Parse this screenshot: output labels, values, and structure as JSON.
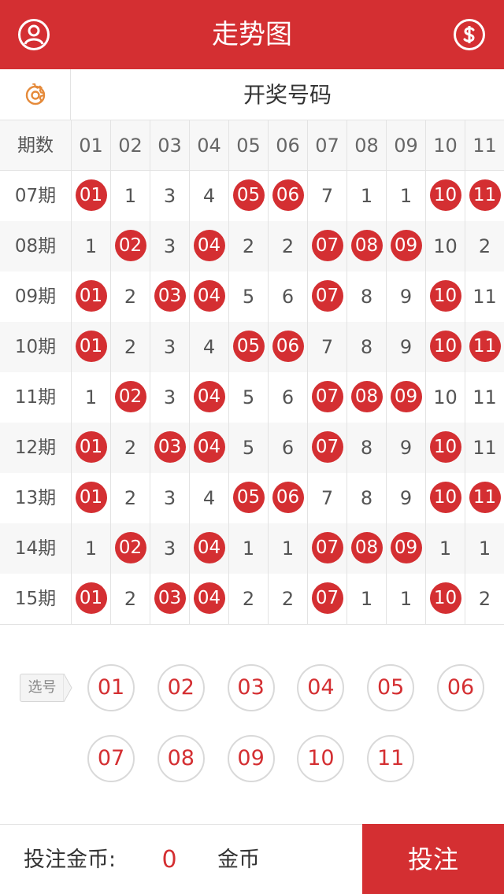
{
  "header": {
    "title": "走势图",
    "left_icon": "user-icon",
    "right_icon": "dollar-icon"
  },
  "subheader": {
    "settings_icon": "gear-icon",
    "label": "开奖号码"
  },
  "colors": {
    "accent": "#d42f32",
    "grid_line": "#e3e3e3",
    "alt_row": "#f7f7f7"
  },
  "table": {
    "period_header": "期数",
    "columns": [
      "01",
      "02",
      "03",
      "04",
      "05",
      "06",
      "07",
      "08",
      "09",
      "10",
      "11"
    ],
    "rows": [
      {
        "period": "07期",
        "cells": [
          {
            "v": "01",
            "hit": true
          },
          {
            "v": "1",
            "hit": false
          },
          {
            "v": "3",
            "hit": false
          },
          {
            "v": "4",
            "hit": false
          },
          {
            "v": "05",
            "hit": true
          },
          {
            "v": "06",
            "hit": true
          },
          {
            "v": "7",
            "hit": false
          },
          {
            "v": "1",
            "hit": false
          },
          {
            "v": "1",
            "hit": false
          },
          {
            "v": "10",
            "hit": true
          },
          {
            "v": "11",
            "hit": true
          }
        ]
      },
      {
        "period": "08期",
        "cells": [
          {
            "v": "1",
            "hit": false
          },
          {
            "v": "02",
            "hit": true
          },
          {
            "v": "3",
            "hit": false
          },
          {
            "v": "04",
            "hit": true
          },
          {
            "v": "2",
            "hit": false
          },
          {
            "v": "2",
            "hit": false
          },
          {
            "v": "07",
            "hit": true
          },
          {
            "v": "08",
            "hit": true
          },
          {
            "v": "09",
            "hit": true
          },
          {
            "v": "10",
            "hit": false
          },
          {
            "v": "2",
            "hit": false
          }
        ]
      },
      {
        "period": "09期",
        "cells": [
          {
            "v": "01",
            "hit": true
          },
          {
            "v": "2",
            "hit": false
          },
          {
            "v": "03",
            "hit": true
          },
          {
            "v": "04",
            "hit": true
          },
          {
            "v": "5",
            "hit": false
          },
          {
            "v": "6",
            "hit": false
          },
          {
            "v": "07",
            "hit": true
          },
          {
            "v": "8",
            "hit": false
          },
          {
            "v": "9",
            "hit": false
          },
          {
            "v": "10",
            "hit": true
          },
          {
            "v": "11",
            "hit": false
          }
        ]
      },
      {
        "period": "10期",
        "cells": [
          {
            "v": "01",
            "hit": true
          },
          {
            "v": "2",
            "hit": false
          },
          {
            "v": "3",
            "hit": false
          },
          {
            "v": "4",
            "hit": false
          },
          {
            "v": "05",
            "hit": true
          },
          {
            "v": "06",
            "hit": true
          },
          {
            "v": "7",
            "hit": false
          },
          {
            "v": "8",
            "hit": false
          },
          {
            "v": "9",
            "hit": false
          },
          {
            "v": "10",
            "hit": true
          },
          {
            "v": "11",
            "hit": true
          }
        ]
      },
      {
        "period": "11期",
        "cells": [
          {
            "v": "1",
            "hit": false
          },
          {
            "v": "02",
            "hit": true
          },
          {
            "v": "3",
            "hit": false
          },
          {
            "v": "04",
            "hit": true
          },
          {
            "v": "5",
            "hit": false
          },
          {
            "v": "6",
            "hit": false
          },
          {
            "v": "07",
            "hit": true
          },
          {
            "v": "08",
            "hit": true
          },
          {
            "v": "09",
            "hit": true
          },
          {
            "v": "10",
            "hit": false
          },
          {
            "v": "11",
            "hit": false
          }
        ]
      },
      {
        "period": "12期",
        "cells": [
          {
            "v": "01",
            "hit": true
          },
          {
            "v": "2",
            "hit": false
          },
          {
            "v": "03",
            "hit": true
          },
          {
            "v": "04",
            "hit": true
          },
          {
            "v": "5",
            "hit": false
          },
          {
            "v": "6",
            "hit": false
          },
          {
            "v": "07",
            "hit": true
          },
          {
            "v": "8",
            "hit": false
          },
          {
            "v": "9",
            "hit": false
          },
          {
            "v": "10",
            "hit": true
          },
          {
            "v": "11",
            "hit": false
          }
        ]
      },
      {
        "period": "13期",
        "cells": [
          {
            "v": "01",
            "hit": true
          },
          {
            "v": "2",
            "hit": false
          },
          {
            "v": "3",
            "hit": false
          },
          {
            "v": "4",
            "hit": false
          },
          {
            "v": "05",
            "hit": true
          },
          {
            "v": "06",
            "hit": true
          },
          {
            "v": "7",
            "hit": false
          },
          {
            "v": "8",
            "hit": false
          },
          {
            "v": "9",
            "hit": false
          },
          {
            "v": "10",
            "hit": true
          },
          {
            "v": "11",
            "hit": true
          }
        ]
      },
      {
        "period": "14期",
        "cells": [
          {
            "v": "1",
            "hit": false
          },
          {
            "v": "02",
            "hit": true
          },
          {
            "v": "3",
            "hit": false
          },
          {
            "v": "04",
            "hit": true
          },
          {
            "v": "1",
            "hit": false
          },
          {
            "v": "1",
            "hit": false
          },
          {
            "v": "07",
            "hit": true
          },
          {
            "v": "08",
            "hit": true
          },
          {
            "v": "09",
            "hit": true
          },
          {
            "v": "1",
            "hit": false
          },
          {
            "v": "1",
            "hit": false
          }
        ]
      },
      {
        "period": "15期",
        "cells": [
          {
            "v": "01",
            "hit": true
          },
          {
            "v": "2",
            "hit": false
          },
          {
            "v": "03",
            "hit": true
          },
          {
            "v": "04",
            "hit": true
          },
          {
            "v": "2",
            "hit": false
          },
          {
            "v": "2",
            "hit": false
          },
          {
            "v": "07",
            "hit": true
          },
          {
            "v": "1",
            "hit": false
          },
          {
            "v": "1",
            "hit": false
          },
          {
            "v": "10",
            "hit": true
          },
          {
            "v": "2",
            "hit": false
          }
        ]
      }
    ]
  },
  "picker": {
    "tag_label": "选号",
    "numbers": [
      "01",
      "02",
      "03",
      "04",
      "05",
      "06",
      "07",
      "08",
      "09",
      "10",
      "11"
    ]
  },
  "footer": {
    "label": "投注金币:",
    "amount": "0",
    "unit": "金币",
    "bet_button": "投注"
  }
}
